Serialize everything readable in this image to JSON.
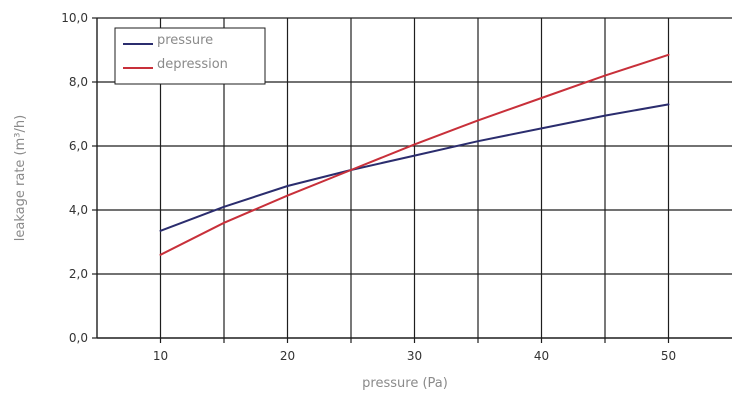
{
  "chart_data": {
    "type": "line",
    "xlabel": "pressure (Pa)",
    "ylabel": "leakage rate (m³/h)",
    "xlim": [
      5,
      55
    ],
    "ylim": [
      0,
      10
    ],
    "x_ticks": [
      10,
      20,
      30,
      40,
      50
    ],
    "x_tick_labels": [
      "10",
      "20",
      "30",
      "40",
      "50"
    ],
    "y_ticks": [
      0,
      2,
      4,
      6,
      8,
      10
    ],
    "y_tick_labels": [
      "0,0",
      "2,0",
      "4,0",
      "6,0",
      "8,0",
      "10,0"
    ],
    "grid": true,
    "legend_position": "top-left",
    "x": [
      10,
      15,
      20,
      25,
      30,
      35,
      40,
      45,
      50
    ],
    "series": [
      {
        "name": "pressure",
        "color": "#2b2d6e",
        "values": [
          3.35,
          4.1,
          4.75,
          5.25,
          5.7,
          6.15,
          6.55,
          6.95,
          7.3
        ]
      },
      {
        "name": "depression",
        "color": "#c8303a",
        "values": [
          2.6,
          3.6,
          4.45,
          5.25,
          6.05,
          6.8,
          7.5,
          8.2,
          8.85
        ]
      }
    ]
  }
}
